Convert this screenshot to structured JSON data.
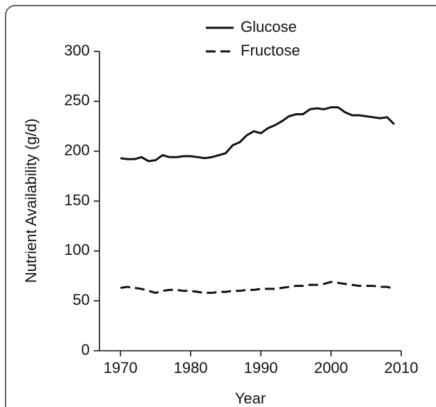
{
  "chart_data": {
    "type": "line",
    "x_label": "Year",
    "y_label": "Nutrient Availability (g/d)",
    "x": [
      1970,
      1971,
      1972,
      1973,
      1974,
      1975,
      1976,
      1977,
      1978,
      1979,
      1980,
      1981,
      1982,
      1983,
      1984,
      1985,
      1986,
      1987,
      1988,
      1989,
      1990,
      1991,
      1992,
      1993,
      1994,
      1995,
      1996,
      1997,
      1998,
      1999,
      2000,
      2001,
      2002,
      2003,
      2004,
      2005,
      2006,
      2007,
      2008,
      2009
    ],
    "series": [
      {
        "name": "Glucose",
        "color": "#111111",
        "dash": "solid",
        "values": [
          193,
          192,
          192,
          194,
          190,
          191,
          196,
          194,
          194,
          195,
          195,
          194,
          193,
          194,
          196,
          198,
          206,
          209,
          216,
          220,
          218,
          223,
          226,
          230,
          235,
          237,
          237,
          242,
          243,
          242,
          244,
          244,
          239,
          236,
          236,
          235,
          234,
          233,
          234,
          227
        ]
      },
      {
        "name": "Fructose",
        "color": "#111111",
        "dash": "dashed",
        "values": [
          63,
          64,
          63,
          62,
          60,
          58,
          60,
          61,
          61,
          60,
          60,
          59,
          58,
          58,
          59,
          59,
          60,
          60,
          61,
          61,
          62,
          62,
          62,
          63,
          64,
          65,
          65,
          66,
          66,
          67,
          69,
          68,
          67,
          66,
          65,
          65,
          65,
          64,
          64,
          62
        ]
      }
    ],
    "xlim": [
      1967,
      2010
    ],
    "xticks": [
      1970,
      1980,
      1990,
      2000,
      2010
    ],
    "ylim": [
      0,
      300
    ],
    "yticks": [
      0,
      50,
      100,
      150,
      200,
      250,
      300
    ]
  }
}
